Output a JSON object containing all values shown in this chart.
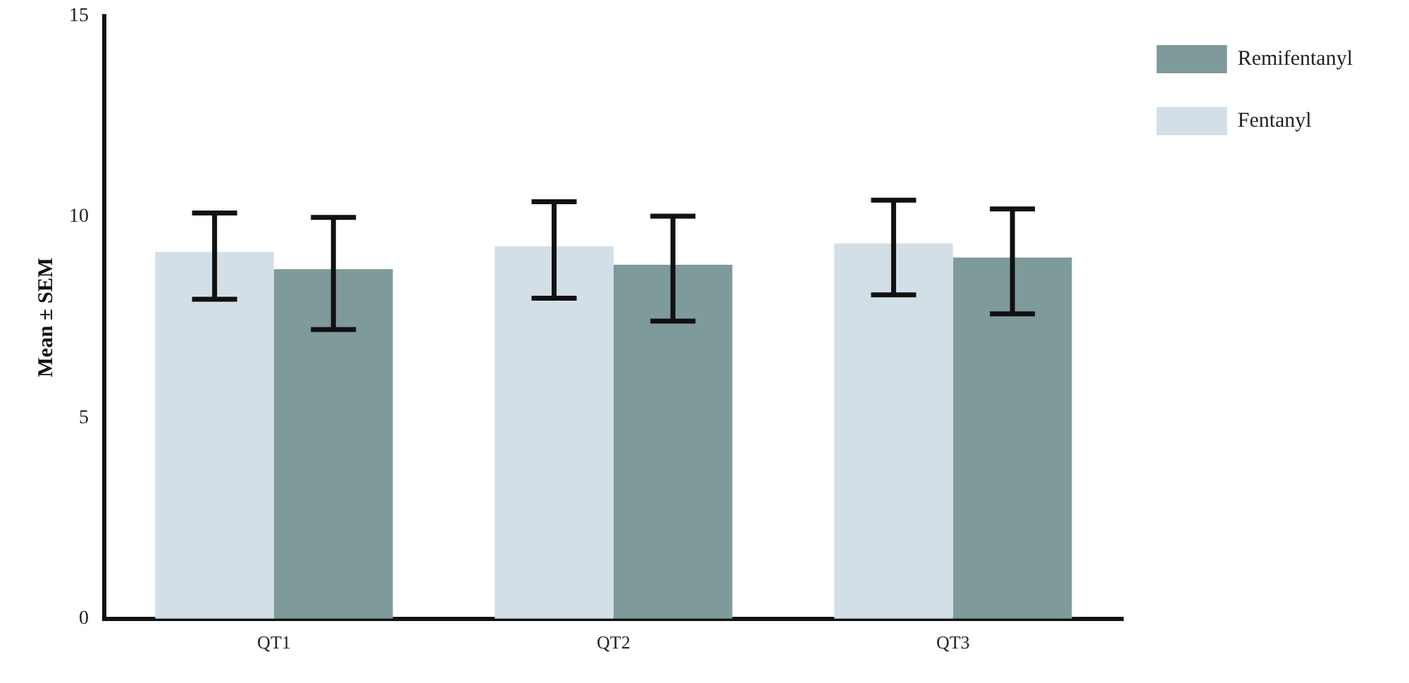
{
  "chart_data": {
    "type": "bar",
    "ylabel": "Mean ± SEM",
    "categories": [
      "QT1",
      "QT2",
      "QT3"
    ],
    "series": [
      {
        "name": "Fentanyl",
        "color": "#d3dfe6",
        "values": [
          9.13,
          9.27,
          9.34
        ],
        "errors": [
          [
            7.95,
            10.1
          ],
          [
            7.98,
            10.38
          ],
          [
            8.06,
            10.42
          ]
        ]
      },
      {
        "name": "Remifentanyl",
        "color": "#7f9a9b",
        "values": [
          8.7,
          8.81,
          8.99
        ],
        "errors": [
          [
            7.2,
            9.99
          ],
          [
            7.41,
            10.02
          ],
          [
            7.59,
            10.2
          ]
        ]
      }
    ],
    "ylim": [
      0,
      15
    ],
    "yticks": [
      0,
      5,
      10,
      15
    ],
    "grid": false,
    "legend": "top right"
  }
}
